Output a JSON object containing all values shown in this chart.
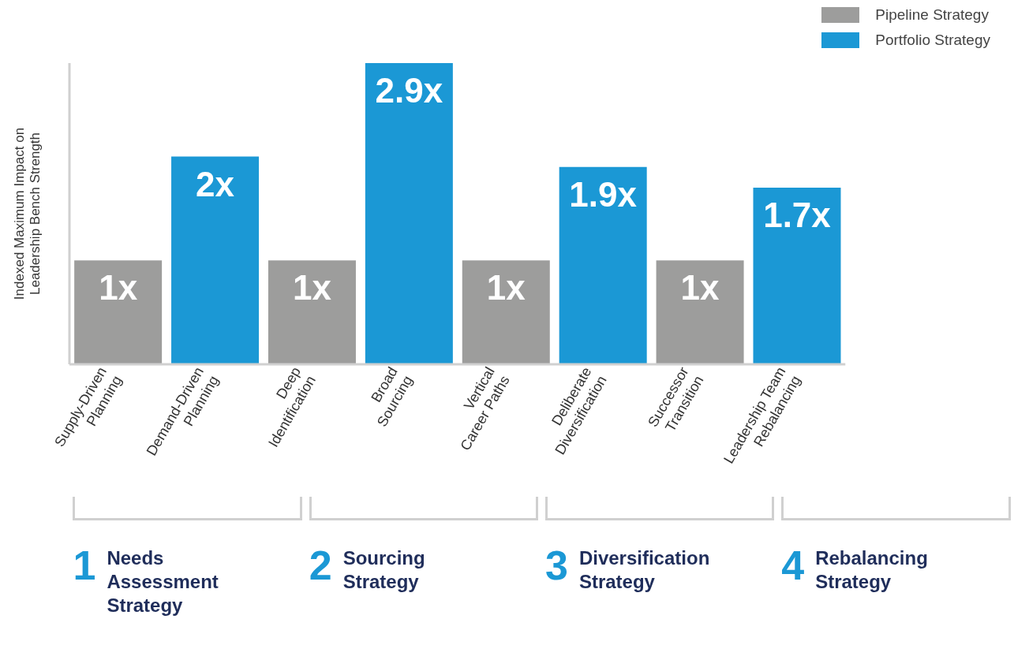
{
  "chart_data": {
    "type": "bar",
    "ylabel": "Indexed Maximum Impact on\nLeadership Bench Strength",
    "categories": [
      "Supply-Driven\nPlanning",
      "Demand-Driven\nPlanning",
      "Deep\nIdentification",
      "Broad\nSourcing",
      "Vertical\nCareer Paths",
      "Deliberate\nDiversification",
      "Successor\nTransition",
      "Leadership Team\nRebalancing"
    ],
    "series": [
      {
        "name": "Pipeline Strategy",
        "color": "#9d9d9c",
        "values": [
          1,
          null,
          1,
          null,
          1,
          null,
          1,
          null
        ],
        "value_labels": [
          "1x",
          null,
          "1x",
          null,
          "1x",
          null,
          "1x",
          null
        ]
      },
      {
        "name": "Portfolio Strategy",
        "color": "#1b98d5",
        "values": [
          null,
          2,
          null,
          2.9,
          null,
          1.9,
          null,
          1.7
        ],
        "value_labels": [
          null,
          "2x",
          null,
          "2.9x",
          null,
          "1.9x",
          null,
          "1.7x"
        ]
      }
    ],
    "legend": "top right",
    "grid": false,
    "tick_labels": "x",
    "annotations": [
      "1 Needs Assessment Strategy",
      "2 Sourcing Strategy",
      "3 Diversification Strategy",
      "4 Rebalancing Strategy"
    ]
  }
}
